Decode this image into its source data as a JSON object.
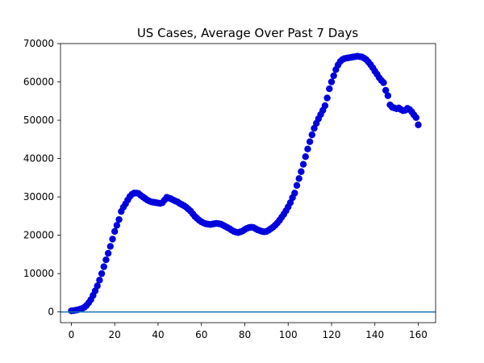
{
  "chart_data": {
    "type": "scatter",
    "title": "US Cases, Average Over Past 7 Days",
    "xlabel": "",
    "ylabel": "",
    "xlim": [
      -5,
      168
    ],
    "ylim": [
      -2800,
      70000
    ],
    "x_ticks": [
      0,
      20,
      40,
      60,
      80,
      100,
      120,
      140,
      160
    ],
    "y_ticks": [
      0,
      10000,
      20000,
      30000,
      40000,
      50000,
      60000,
      70000
    ],
    "grid": false,
    "colors": {
      "points": "#0000dd",
      "reference_line": "#1f77b4"
    },
    "reference_line": {
      "y": 0
    },
    "series": [
      {
        "x": [
          0,
          1,
          2,
          3,
          4,
          5,
          6,
          7,
          8,
          9,
          10,
          11,
          12,
          13,
          14,
          15,
          16,
          17,
          18,
          19,
          20,
          21,
          22,
          23,
          24,
          25,
          26,
          27,
          28,
          29,
          30,
          31,
          32,
          33,
          34,
          35,
          36,
          37,
          38,
          39,
          40,
          41,
          42,
          43,
          44,
          45,
          46,
          47,
          48,
          49,
          50,
          51,
          52,
          53,
          54,
          55,
          56,
          57,
          58,
          59,
          60,
          61,
          62,
          63,
          64,
          65,
          66,
          67,
          68,
          69,
          70,
          71,
          72,
          73,
          74,
          75,
          76,
          77,
          78,
          79,
          80,
          81,
          82,
          83,
          84,
          85,
          86,
          87,
          88,
          89,
          90,
          91,
          92,
          93,
          94,
          95,
          96,
          97,
          98,
          99,
          100,
          101,
          102,
          103,
          104,
          105,
          106,
          107,
          108,
          109,
          110,
          111,
          112,
          113,
          114,
          115,
          116,
          117,
          118,
          119,
          120,
          121,
          122,
          123,
          124,
          125,
          126,
          127,
          128,
          129,
          130,
          131,
          132,
          133,
          134,
          135,
          136,
          137,
          138,
          139,
          140,
          141,
          142,
          143,
          144,
          145,
          146,
          147,
          148,
          149,
          150,
          151,
          152,
          153,
          154,
          155,
          156,
          157,
          158,
          159,
          160
        ],
        "y": [
          300,
          350,
          450,
          550,
          700,
          900,
          1200,
          1700,
          2400,
          3200,
          4300,
          5500,
          6800,
          8300,
          10000,
          11800,
          13600,
          15300,
          17100,
          19000,
          21000,
          22600,
          24100,
          26200,
          27300,
          28200,
          29200,
          30100,
          30700,
          31000,
          31000,
          30900,
          30400,
          30000,
          29600,
          29200,
          28900,
          28700,
          28600,
          28500,
          28400,
          28300,
          28500,
          29200,
          29900,
          29700,
          29500,
          29200,
          28900,
          28700,
          28300,
          28000,
          27700,
          27300,
          26800,
          26300,
          25600,
          24900,
          24400,
          23900,
          23500,
          23200,
          23000,
          22900,
          22800,
          22900,
          23000,
          23100,
          23000,
          22900,
          22600,
          22300,
          22000,
          21700,
          21300,
          21000,
          20800,
          20700,
          20900,
          21100,
          21500,
          21800,
          22000,
          22100,
          22000,
          21700,
          21400,
          21200,
          21000,
          20900,
          21000,
          21300,
          21700,
          22100,
          22600,
          23200,
          23900,
          24700,
          25500,
          26400,
          27400,
          28500,
          29800,
          31000,
          33000,
          34800,
          36600,
          38500,
          40500,
          42500,
          44400,
          46200,
          47900,
          49200,
          50400,
          51500,
          52600,
          53800,
          55800,
          58200,
          60000,
          61600,
          63200,
          64400,
          65300,
          65800,
          66100,
          66200,
          66300,
          66400,
          66500,
          66600,
          66700,
          66600,
          66500,
          66200,
          65800,
          65200,
          64500,
          63700,
          62800,
          62000,
          61100,
          60400,
          59800,
          57800,
          56400,
          54000,
          53400,
          53200,
          53000,
          53200,
          52800,
          52500,
          52600,
          53100,
          52800,
          52200,
          51400,
          50700,
          48800
        ]
      }
    ]
  }
}
